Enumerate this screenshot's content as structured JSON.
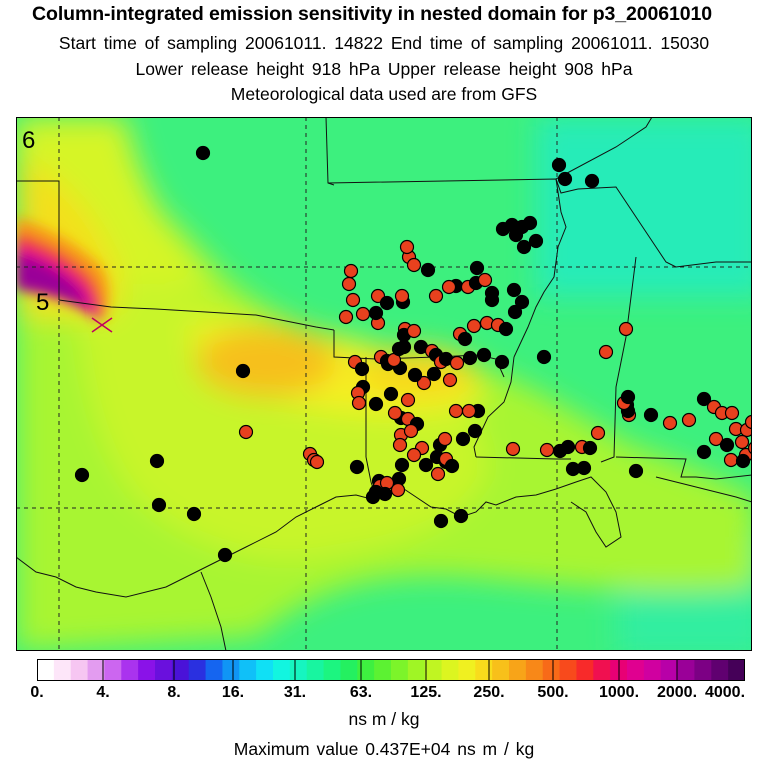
{
  "header": {
    "title": "Column-integrated emission sensitivity in nested domain for p3_20061010",
    "line1": "Start time of sampling 20061011. 14822     End time of sampling 20061011. 15030",
    "line2": "Lower release height  918 hPa       Upper release height  908 hPa",
    "line3": "Meteorological data used are from GFS"
  },
  "map": {
    "grid_labels": [
      "6",
      "5"
    ],
    "colors": {
      "background": "#38f07a",
      "yellow_green": "#b8f53a",
      "yellow": "#f3f520",
      "orange": "#f5b818",
      "magenta": "#e0008a",
      "point_red": "#e8411e",
      "point_black": "#000000"
    },
    "release_marker": "cross-icon"
  },
  "colorbar": {
    "tick_labels": [
      "0.",
      "4.",
      "8.",
      "16.",
      "31.",
      "63.",
      "125.",
      "250.",
      "500.",
      "1000.",
      "2000.",
      "4000."
    ],
    "colors": [
      "#ffffff",
      "#fde6f9",
      "#f6c6f2",
      "#e39cf0",
      "#cc66f0",
      "#aa33ee",
      "#8a12e8",
      "#6a10dd",
      "#4a12d8",
      "#2a30e0",
      "#1565f0",
      "#1095f5",
      "#10c0f8",
      "#10e0f5",
      "#12f5e0",
      "#16f5c0",
      "#18f5a0",
      "#1cf580",
      "#24f060",
      "#3ef040",
      "#5cf232",
      "#7cf42a",
      "#a0f525",
      "#c0f522",
      "#dcf520",
      "#f0f020",
      "#f8dc1c",
      "#f8c01a",
      "#f8a418",
      "#f88818",
      "#f86a18",
      "#f84a1c",
      "#f82a2a",
      "#f01050",
      "#e80075",
      "#e00090",
      "#d000a0",
      "#b800a8",
      "#9a0098",
      "#7c0084",
      "#600070",
      "#450058"
    ],
    "units": "ns m / kg",
    "max_value": "Maximum value  0.437E+04 ns m / kg"
  }
}
